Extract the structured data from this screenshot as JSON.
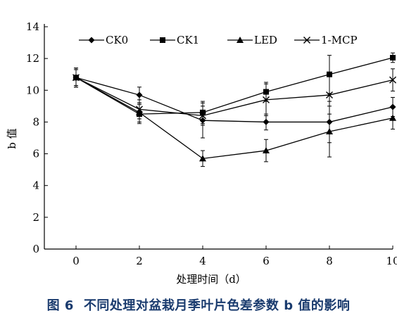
{
  "chart_data": {
    "type": "line",
    "x": [
      0,
      2,
      4,
      6,
      8,
      10
    ],
    "xlabel": "处理时间（d）",
    "ylabel": "b 值",
    "xlim": [
      -1,
      10
    ],
    "ylim": [
      0,
      14
    ],
    "xticks": [
      0,
      2,
      4,
      6,
      8,
      10
    ],
    "yticks": [
      0,
      2,
      4,
      6,
      8,
      10,
      12,
      14
    ],
    "legend_position": "top",
    "grid": false,
    "series": [
      {
        "name": "CK0",
        "marker": "diamond",
        "values": [
          10.8,
          9.7,
          8.1,
          8.0,
          8.0,
          8.95
        ],
        "errors": [
          0.5,
          0.5,
          1.1,
          0.5,
          1.3,
          0.6
        ]
      },
      {
        "name": "CK1",
        "marker": "square",
        "values": [
          10.8,
          8.5,
          8.6,
          9.9,
          11.0,
          12.05
        ],
        "errors": [
          0.6,
          0.6,
          0.7,
          0.6,
          1.2,
          0.3
        ]
      },
      {
        "name": "LED",
        "marker": "triangle",
        "values": [
          10.8,
          8.6,
          5.7,
          6.2,
          7.4,
          8.25
        ],
        "errors": [
          0.5,
          0.6,
          0.5,
          0.7,
          1.6,
          0.7
        ]
      },
      {
        "name": "1-MCP",
        "marker": "x",
        "values": [
          10.8,
          8.8,
          8.4,
          9.4,
          9.7,
          10.65
        ],
        "errors": [
          0.6,
          0.6,
          0.6,
          1.0,
          1.2,
          0.7
        ]
      }
    ]
  },
  "caption": {
    "figure": "图 6",
    "text": "不同处理对盆栽月季叶片色差参数 b 值的影响"
  }
}
